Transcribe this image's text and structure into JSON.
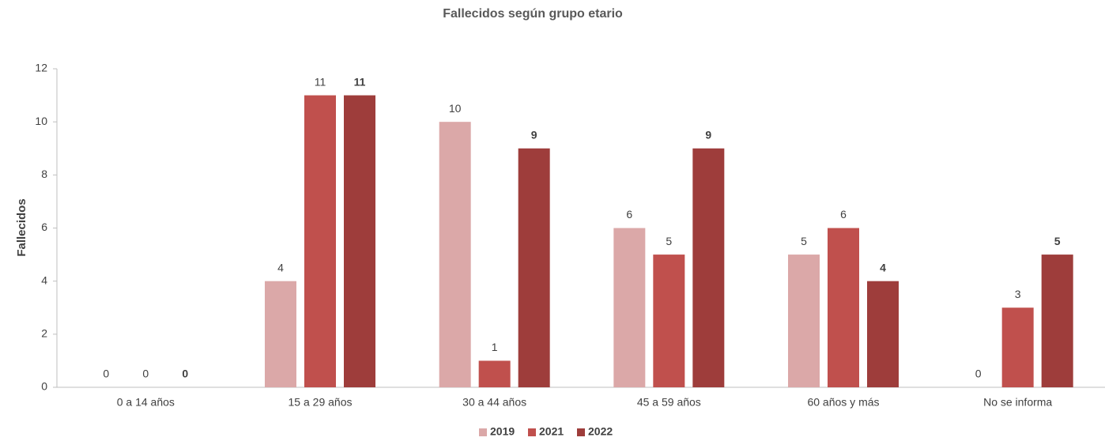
{
  "chart_data": {
    "type": "bar",
    "title": "Fallecidos según grupo etario",
    "y_label": "Fallecidos",
    "categories": [
      "0 a 14 años",
      "15 a 29 años",
      "30 a 44 años",
      "45 a 59 años",
      "60 años y más",
      "No se informa"
    ],
    "series": [
      {
        "name": "2019",
        "color": "#dba8a8",
        "values": [
          0,
          4,
          10,
          6,
          5,
          0
        ]
      },
      {
        "name": "2021",
        "color": "#c0504d",
        "values": [
          0,
          11,
          1,
          5,
          6,
          3
        ]
      },
      {
        "name": "2022",
        "color": "#9e3d3b",
        "values": [
          0,
          11,
          9,
          9,
          4,
          5
        ]
      }
    ],
    "ylim": [
      0,
      12
    ],
    "yticks": [
      0,
      2,
      4,
      6,
      8,
      10,
      12
    ],
    "legend": "bottom"
  }
}
